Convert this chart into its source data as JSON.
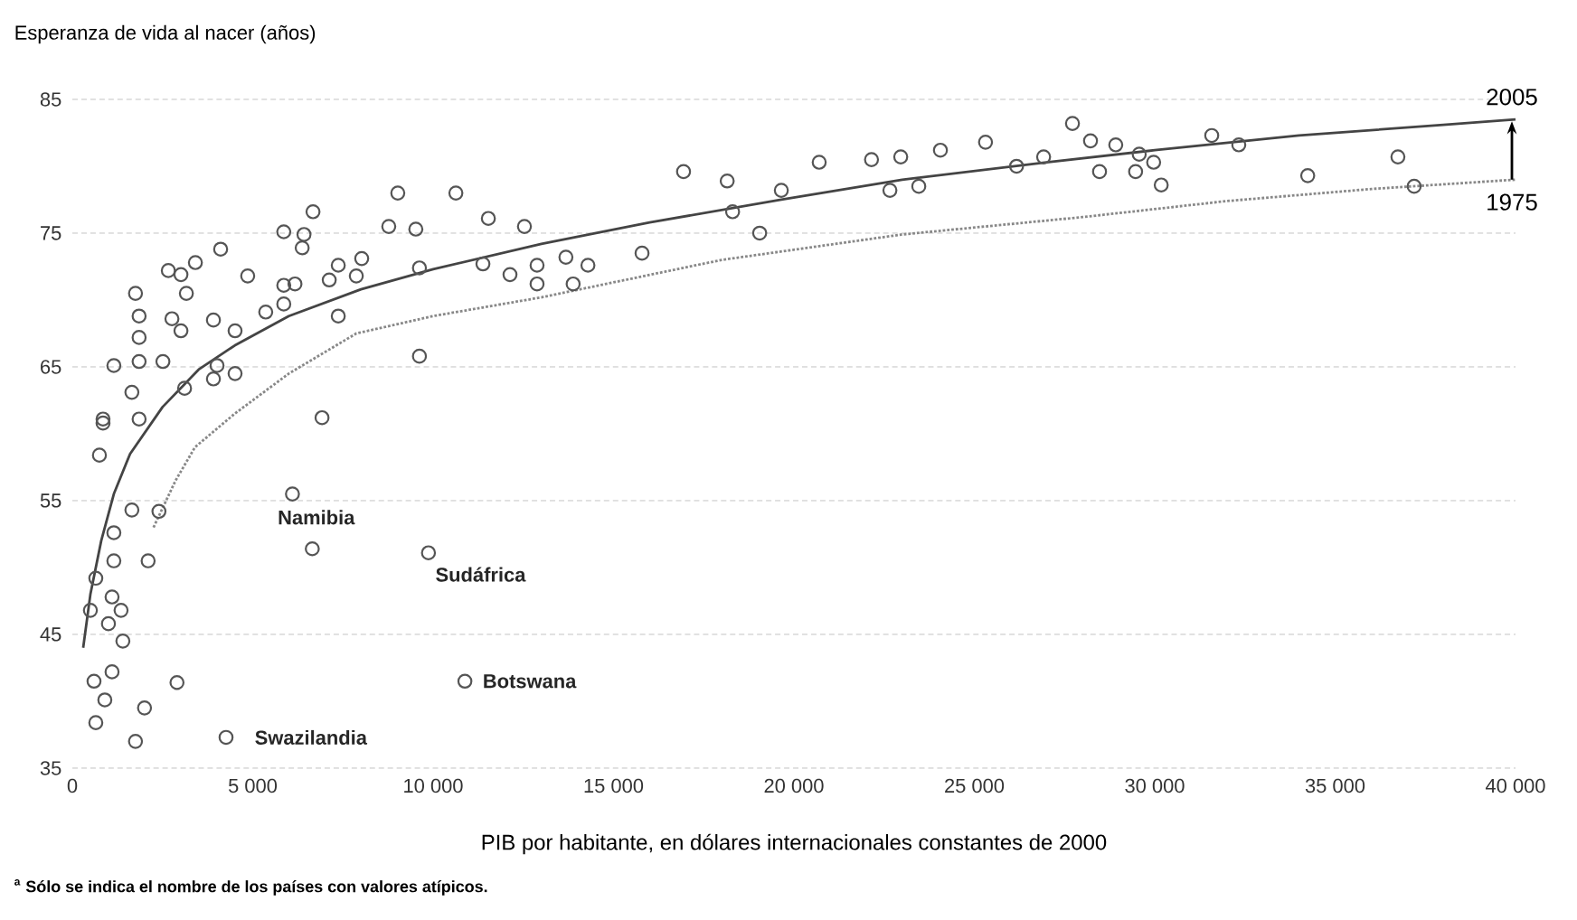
{
  "chart_data": {
    "type": "scatter",
    "ylabel": "Esperanza de vida al nacer (años)",
    "xlabel": "PIB por habitante, en dólares internacionales constantes de 2000",
    "xlim": [
      0,
      40000
    ],
    "ylim": [
      35,
      85
    ],
    "xticks": [
      0,
      {
        "value": 5000,
        "label": "5 000"
      },
      {
        "value": 10000,
        "label": "10 000"
      },
      {
        "value": 15000,
        "label": "15 000"
      },
      {
        "value": 20000,
        "label": "20 000"
      },
      {
        "value": 25000,
        "label": "25 000"
      },
      {
        "value": 30000,
        "label": "30 000"
      },
      {
        "value": 35000,
        "label": "35 000"
      },
      {
        "value": 40000,
        "label": "40 000"
      }
    ],
    "yticks": [
      35,
      45,
      55,
      65,
      75,
      85
    ],
    "grid": "y",
    "marker": "circle",
    "series": [
      {
        "color": "#555555",
        "x": [
          850,
          750,
          6100,
          6650,
          9870,
          10880,
          4260,
          2900,
          600,
          1100,
          900,
          2000,
          650,
          1750,
          1400,
          2100,
          1150,
          2400,
          1650,
          650,
          1100,
          500,
          1350,
          1000,
          1150,
          9020,
          10630,
          6670,
          8770,
          9520,
          11530,
          12530,
          5860,
          6420,
          6370,
          4110,
          3410,
          2660,
          3010,
          4860,
          7370,
          8020,
          7870,
          5860,
          7120,
          1750,
          3160,
          9620,
          11380,
          12130,
          12880,
          12880,
          13680,
          13880,
          14290,
          1850,
          2760,
          3910,
          4510,
          5360,
          6170,
          1850,
          3010,
          5860,
          7370,
          1150,
          1850,
          2510,
          4010,
          4510,
          9620,
          3110,
          3910,
          1650,
          850,
          1850,
          6920,
          16940,
          18150,
          18300,
          19650,
          19050,
          15790,
          20700,
          22150,
          22960,
          22660,
          23460,
          24060,
          25310,
          26170,
          26920,
          27720,
          28220,
          28920,
          29570,
          28470,
          29470,
          29970,
          30180,
          31580,
          32330,
          34240,
          36740,
          37190
        ],
        "values": [
          60.8,
          58.4,
          55.5,
          51.4,
          51.1,
          41.5,
          37.3,
          41.4,
          41.5,
          42.2,
          40.1,
          39.5,
          38.4,
          37.0,
          44.5,
          50.5,
          50.5,
          54.2,
          54.3,
          49.2,
          47.8,
          46.8,
          46.8,
          45.8,
          52.6,
          78.0,
          78.0,
          76.6,
          75.5,
          75.3,
          76.1,
          75.5,
          75.1,
          74.9,
          73.9,
          73.8,
          72.8,
          72.2,
          71.9,
          71.8,
          72.6,
          73.1,
          71.8,
          71.1,
          71.5,
          70.5,
          70.5,
          72.4,
          72.7,
          71.9,
          72.6,
          71.2,
          73.2,
          71.2,
          72.6,
          68.8,
          68.6,
          68.5,
          67.7,
          69.1,
          71.2,
          67.2,
          67.7,
          69.7,
          68.8,
          65.1,
          65.4,
          65.4,
          65.1,
          64.5,
          65.8,
          63.4,
          64.1,
          63.1,
          61.1,
          61.1,
          61.2,
          79.6,
          78.9,
          76.6,
          78.2,
          75.0,
          73.5,
          80.3,
          80.5,
          80.7,
          78.2,
          78.5,
          81.2,
          81.8,
          80.0,
          80.7,
          83.2,
          81.9,
          81.6,
          80.9,
          79.6,
          79.6,
          80.3,
          78.6,
          82.3,
          81.6,
          79.3,
          80.7,
          78.5
        ]
      },
      {
        "type": "line",
        "name": "2005",
        "color": "#444444",
        "line_style": "solid",
        "marker": "none",
        "x": [
          300,
          500,
          800,
          1150,
          1600,
          2500,
          3500,
          4500,
          6000,
          8000,
          10000,
          13000,
          16000,
          19650,
          23000,
          27000,
          30000,
          34000,
          38000,
          40000
        ],
        "values": [
          44,
          48,
          52,
          55.5,
          58.5,
          62,
          64.8,
          66.6,
          68.8,
          70.8,
          72.3,
          74.2,
          75.8,
          77.5,
          79,
          80.3,
          81.2,
          82.3,
          83.1,
          83.5
        ]
      },
      {
        "type": "line",
        "name": "1975",
        "color": "#888888",
        "line_style": "dotted",
        "marker": "none",
        "x": [
          2250,
          2860,
          3400,
          4500,
          6000,
          7870,
          10000,
          13000,
          18000,
          23000,
          28000,
          32000,
          36000,
          40000
        ],
        "values": [
          53,
          56.5,
          59,
          61.5,
          64.5,
          67.5,
          68.8,
          70.2,
          73,
          74.9,
          76.2,
          77.4,
          78.3,
          79
        ]
      }
    ],
    "annotations": [
      {
        "text": "Namibia",
        "x": 6100,
        "y": 55.5
      },
      {
        "text": "Sudáfrica",
        "x": 9870,
        "y": 51.1
      },
      {
        "text": "Botswana",
        "x": 10880,
        "y": 41.5
      },
      {
        "text": "Swazilandia",
        "x": 4260,
        "y": 37.3
      },
      "$^{a}$ Sólo se indica el nombre de los países con valores atípicos."
    ]
  }
}
